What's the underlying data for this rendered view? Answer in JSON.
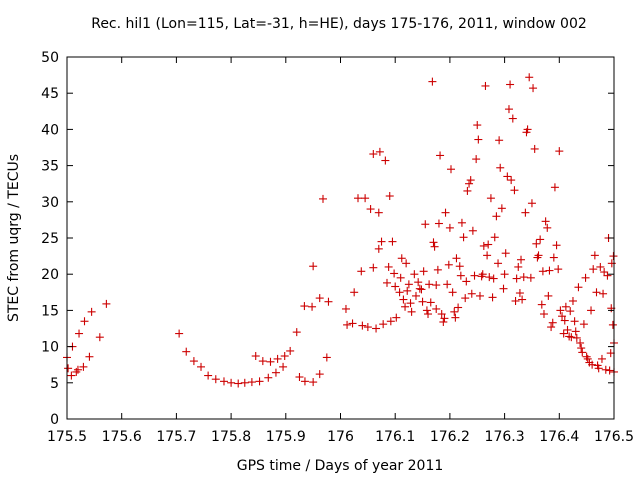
{
  "chart_data": {
    "type": "scatter",
    "title": "Rec. hil1 (Lon=115, Lat=-31, h=HE), days 175-176, 2011, window 002",
    "xlabel": "GPS time / Days of year 2011",
    "ylabel": "STEC from uqrg / TECUs",
    "xlim": [
      175.5,
      176.5
    ],
    "ylim": [
      0,
      50
    ],
    "xticks": [
      "175.5",
      "175.6",
      "175.7",
      "175.8",
      "175.9",
      "176",
      "176.1",
      "176.2",
      "176.3",
      "176.4",
      "176.5"
    ],
    "yticks": [
      "0",
      "5",
      "10",
      "15",
      "20",
      "25",
      "30",
      "35",
      "40",
      "45",
      "50"
    ],
    "grid": false,
    "legend": "none",
    "marker": "plus",
    "color": "#cc0000",
    "points": [
      [
        175.5,
        8.5
      ],
      [
        175.502,
        7.0
      ],
      [
        175.508,
        6.0
      ],
      [
        175.51,
        10.0
      ],
      [
        175.517,
        6.5
      ],
      [
        175.522,
        11.8
      ],
      [
        175.52,
        6.8
      ],
      [
        175.53,
        7.2
      ],
      [
        175.532,
        13.5
      ],
      [
        175.541,
        8.6
      ],
      [
        175.545,
        14.8
      ],
      [
        175.56,
        11.3
      ],
      [
        175.572,
        15.9
      ],
      [
        175.705,
        11.8
      ],
      [
        175.718,
        9.3
      ],
      [
        175.732,
        8.0
      ],
      [
        175.745,
        7.2
      ],
      [
        175.758,
        6.0
      ],
      [
        175.772,
        5.5
      ],
      [
        175.787,
        5.2
      ],
      [
        175.8,
        5.0
      ],
      [
        175.813,
        4.9
      ],
      [
        175.825,
        5.0
      ],
      [
        175.838,
        5.1
      ],
      [
        175.845,
        8.7
      ],
      [
        175.852,
        5.2
      ],
      [
        175.858,
        8.0
      ],
      [
        175.868,
        5.7
      ],
      [
        175.872,
        7.9
      ],
      [
        175.882,
        6.4
      ],
      [
        175.885,
        8.3
      ],
      [
        175.895,
        7.2
      ],
      [
        175.898,
        8.7
      ],
      [
        175.908,
        9.4
      ],
      [
        175.92,
        12.0
      ],
      [
        175.925,
        5.8
      ],
      [
        175.934,
        15.6
      ],
      [
        175.935,
        5.2
      ],
      [
        175.948,
        15.5
      ],
      [
        175.95,
        5.1
      ],
      [
        175.95,
        21.1
      ],
      [
        175.962,
        6.2
      ],
      [
        175.962,
        16.7
      ],
      [
        175.968,
        30.4
      ],
      [
        175.975,
        8.5
      ],
      [
        175.978,
        16.2
      ],
      [
        176.01,
        15.2
      ],
      [
        176.012,
        13.0
      ],
      [
        176.022,
        13.2
      ],
      [
        176.025,
        17.5
      ],
      [
        176.032,
        30.5
      ],
      [
        176.038,
        20.4
      ],
      [
        176.04,
        12.9
      ],
      [
        176.045,
        30.5
      ],
      [
        176.05,
        12.7
      ],
      [
        176.055,
        29.0
      ],
      [
        176.06,
        20.9
      ],
      [
        176.06,
        36.6
      ],
      [
        176.065,
        12.5
      ],
      [
        176.07,
        23.5
      ],
      [
        176.07,
        28.5
      ],
      [
        176.072,
        36.9
      ],
      [
        176.075,
        24.5
      ],
      [
        176.078,
        13.1
      ],
      [
        176.082,
        35.7
      ],
      [
        176.085,
        18.8
      ],
      [
        176.088,
        21.0
      ],
      [
        176.09,
        30.8
      ],
      [
        176.092,
        13.5
      ],
      [
        176.095,
        24.5
      ],
      [
        176.098,
        20.1
      ],
      [
        176.1,
        18.3
      ],
      [
        176.102,
        14.0
      ],
      [
        176.108,
        17.5
      ],
      [
        176.11,
        19.5
      ],
      [
        176.112,
        22.2
      ],
      [
        176.115,
        16.5
      ],
      [
        176.118,
        15.5
      ],
      [
        176.12,
        21.5
      ],
      [
        176.122,
        17.7
      ],
      [
        176.125,
        18.6
      ],
      [
        176.128,
        16.0
      ],
      [
        176.13,
        14.8
      ],
      [
        176.135,
        20.0
      ],
      [
        176.138,
        17.0
      ],
      [
        176.142,
        18.9
      ],
      [
        176.145,
        18.0
      ],
      [
        176.148,
        17.9
      ],
      [
        176.15,
        16.2
      ],
      [
        176.152,
        20.4
      ],
      [
        176.155,
        26.9
      ],
      [
        176.158,
        15.0
      ],
      [
        176.16,
        14.5
      ],
      [
        176.162,
        18.6
      ],
      [
        176.165,
        16.1
      ],
      [
        176.168,
        46.6
      ],
      [
        176.17,
        24.4
      ],
      [
        176.172,
        23.8
      ],
      [
        176.175,
        15.2
      ],
      [
        176.175,
        18.5
      ],
      [
        176.178,
        20.6
      ],
      [
        176.18,
        27.0
      ],
      [
        176.182,
        36.4
      ],
      [
        176.185,
        14.5
      ],
      [
        176.188,
        13.4
      ],
      [
        176.19,
        13.9
      ],
      [
        176.192,
        28.5
      ],
      [
        176.195,
        18.6
      ],
      [
        176.198,
        21.3
      ],
      [
        176.2,
        26.4
      ],
      [
        176.202,
        34.5
      ],
      [
        176.205,
        17.5
      ],
      [
        176.208,
        14.8
      ],
      [
        176.21,
        14.0
      ],
      [
        176.212,
        22.2
      ],
      [
        176.215,
        15.4
      ],
      [
        176.218,
        21.1
      ],
      [
        176.22,
        19.8
      ],
      [
        176.222,
        27.1
      ],
      [
        176.225,
        25.1
      ],
      [
        176.228,
        16.7
      ],
      [
        176.23,
        19.0
      ],
      [
        176.232,
        31.5
      ],
      [
        176.235,
        32.5
      ],
      [
        176.238,
        33.0
      ],
      [
        176.24,
        17.3
      ],
      [
        176.242,
        26.0
      ],
      [
        176.245,
        19.8
      ],
      [
        176.248,
        35.9
      ],
      [
        176.25,
        40.6
      ],
      [
        176.252,
        38.6
      ],
      [
        176.255,
        17.0
      ],
      [
        176.258,
        19.7
      ],
      [
        176.26,
        20.0
      ],
      [
        176.262,
        23.9
      ],
      [
        176.265,
        46.0
      ],
      [
        176.268,
        22.6
      ],
      [
        176.27,
        24.1
      ],
      [
        176.272,
        19.6
      ],
      [
        176.275,
        30.5
      ],
      [
        176.278,
        16.8
      ],
      [
        176.28,
        19.4
      ],
      [
        176.282,
        25.1
      ],
      [
        176.285,
        28.0
      ],
      [
        176.288,
        21.5
      ],
      [
        176.29,
        38.5
      ],
      [
        176.292,
        34.7
      ],
      [
        176.295,
        29.1
      ],
      [
        176.298,
        18.0
      ],
      [
        176.3,
        20.0
      ],
      [
        176.302,
        22.9
      ],
      [
        176.305,
        33.5
      ],
      [
        176.308,
        42.8
      ],
      [
        176.31,
        46.2
      ],
      [
        176.312,
        33.0
      ],
      [
        176.315,
        41.5
      ],
      [
        176.318,
        31.6
      ],
      [
        176.32,
        16.3
      ],
      [
        176.322,
        19.4
      ],
      [
        176.325,
        21.0
      ],
      [
        176.328,
        17.4
      ],
      [
        176.33,
        22.0
      ],
      [
        176.332,
        16.5
      ],
      [
        176.335,
        19.6
      ],
      [
        176.338,
        28.5
      ],
      [
        176.34,
        39.6
      ],
      [
        176.342,
        40.0
      ],
      [
        176.345,
        47.2
      ],
      [
        176.348,
        19.5
      ],
      [
        176.35,
        29.8
      ],
      [
        176.352,
        45.7
      ],
      [
        176.355,
        37.3
      ],
      [
        176.358,
        24.2
      ],
      [
        176.36,
        22.3
      ],
      [
        176.362,
        22.6
      ],
      [
        176.365,
        24.8
      ],
      [
        176.368,
        15.8
      ],
      [
        176.37,
        20.4
      ],
      [
        176.372,
        14.5
      ],
      [
        176.375,
        27.3
      ],
      [
        176.378,
        26.4
      ],
      [
        176.38,
        17.0
      ],
      [
        176.382,
        20.5
      ],
      [
        176.385,
        12.7
      ],
      [
        176.388,
        13.3
      ],
      [
        176.39,
        22.3
      ],
      [
        176.392,
        32.0
      ],
      [
        176.395,
        24.0
      ],
      [
        176.398,
        20.7
      ],
      [
        176.4,
        37.0
      ],
      [
        176.402,
        15.0
      ],
      [
        176.405,
        14.2
      ],
      [
        176.408,
        11.8
      ],
      [
        176.41,
        13.6
      ],
      [
        176.412,
        15.5
      ],
      [
        176.415,
        12.3
      ],
      [
        176.418,
        11.4
      ],
      [
        176.42,
        14.9
      ],
      [
        176.422,
        11.3
      ],
      [
        176.425,
        16.3
      ],
      [
        176.428,
        13.5
      ],
      [
        176.43,
        12.1
      ],
      [
        176.432,
        11.2
      ],
      [
        176.435,
        18.2
      ],
      [
        176.438,
        10.5
      ],
      [
        176.44,
        9.8
      ],
      [
        176.442,
        9.2
      ],
      [
        176.445,
        13.1
      ],
      [
        176.448,
        19.5
      ],
      [
        176.45,
        8.6
      ],
      [
        176.452,
        8.3
      ],
      [
        176.455,
        7.8
      ],
      [
        176.458,
        15.0
      ],
      [
        176.46,
        7.5
      ],
      [
        176.462,
        20.7
      ],
      [
        176.465,
        22.6
      ],
      [
        176.468,
        17.5
      ],
      [
        176.47,
        7.4
      ],
      [
        176.472,
        7.0
      ],
      [
        176.475,
        21.0
      ],
      [
        176.478,
        8.3
      ],
      [
        176.48,
        17.3
      ],
      [
        176.482,
        20.3
      ],
      [
        176.485,
        6.8
      ],
      [
        176.488,
        19.8
      ],
      [
        176.49,
        25.0
      ],
      [
        176.492,
        6.7
      ],
      [
        176.494,
        9.1
      ],
      [
        176.495,
        15.3
      ],
      [
        176.496,
        21.5
      ],
      [
        176.498,
        13.0
      ],
      [
        176.499,
        22.5
      ],
      [
        176.5,
        10.5
      ],
      [
        176.5,
        6.5
      ]
    ]
  }
}
